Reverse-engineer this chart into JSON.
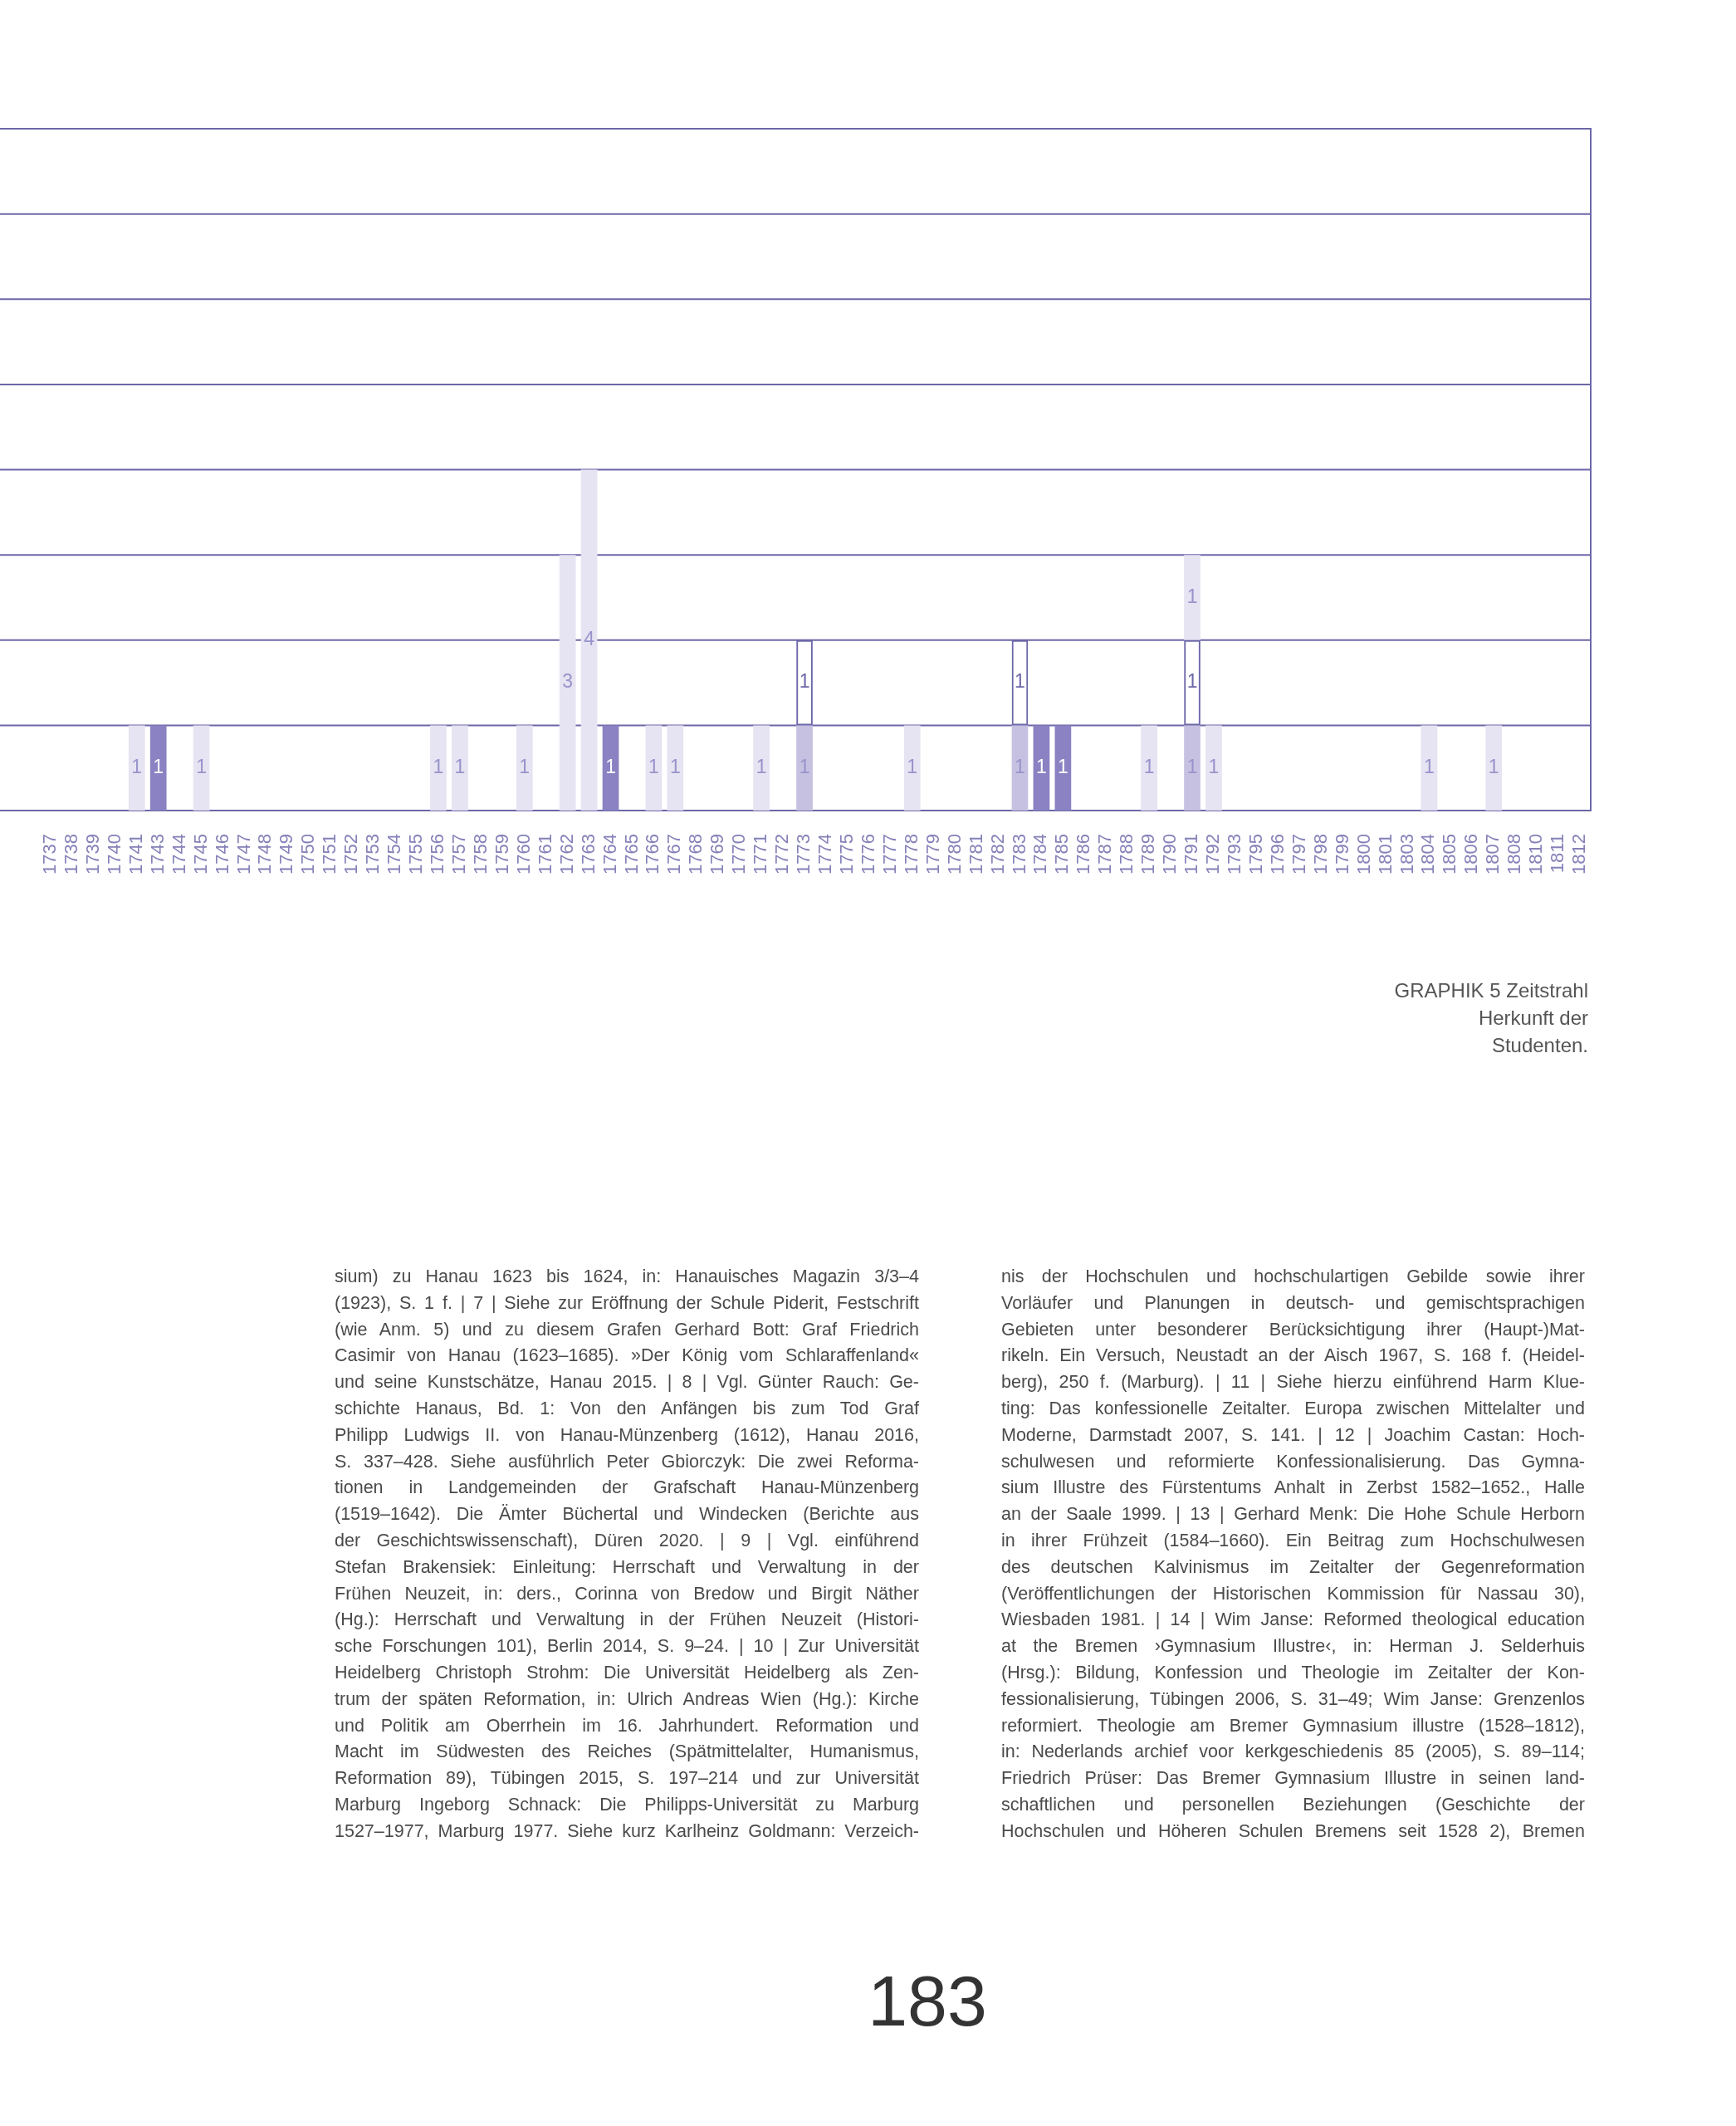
{
  "chart_data": {
    "type": "bar",
    "title": "GRAPHIK 5 Zeitstrahl Herkunft der Studenten.",
    "categories": [
      "1737",
      "1738",
      "1739",
      "1740",
      "1741",
      "1743",
      "1744",
      "1745",
      "1746",
      "1747",
      "1748",
      "1749",
      "1750",
      "1751",
      "1752",
      "1753",
      "1754",
      "1755",
      "1756",
      "1757",
      "1758",
      "1759",
      "1760",
      "1761",
      "1762",
      "1763",
      "1764",
      "1765",
      "1766",
      "1767",
      "1768",
      "1769",
      "1770",
      "1771",
      "1772",
      "1773",
      "1774",
      "1775",
      "1776",
      "1777",
      "1778",
      "1779",
      "1780",
      "1781",
      "1782",
      "1783",
      "1784",
      "1785",
      "1786",
      "1787",
      "1788",
      "1789",
      "1790",
      "1791",
      "1792",
      "1793",
      "1795",
      "1796",
      "1797",
      "1798",
      "1799",
      "1800",
      "1801",
      "1803",
      "1804",
      "1805",
      "1806",
      "1807",
      "1808",
      "1810",
      "1811",
      "1812"
    ],
    "stacked": true,
    "series": [
      {
        "color": "#8a82c2",
        "values": [
          null,
          null,
          null,
          null,
          null,
          1,
          null,
          null,
          null,
          null,
          null,
          null,
          null,
          null,
          null,
          null,
          null,
          null,
          null,
          null,
          null,
          null,
          null,
          null,
          null,
          null,
          1,
          null,
          null,
          null,
          null,
          null,
          null,
          null,
          null,
          null,
          null,
          null,
          null,
          null,
          null,
          null,
          null,
          null,
          null,
          null,
          1,
          1,
          null,
          null,
          null,
          null,
          null,
          null,
          null,
          null,
          null,
          null,
          null,
          null,
          null,
          null,
          null,
          null,
          null,
          null,
          null,
          null,
          null,
          null,
          null,
          null
        ]
      },
      {
        "color": "#c7c1e1",
        "values": [
          null,
          null,
          null,
          null,
          null,
          null,
          null,
          null,
          null,
          null,
          null,
          null,
          null,
          null,
          null,
          null,
          null,
          null,
          null,
          null,
          null,
          null,
          null,
          null,
          null,
          null,
          null,
          null,
          null,
          null,
          null,
          null,
          null,
          null,
          null,
          1,
          null,
          null,
          null,
          null,
          null,
          null,
          null,
          null,
          null,
          1,
          null,
          null,
          null,
          null,
          null,
          null,
          null,
          1,
          null,
          null,
          null,
          null,
          null,
          null,
          null,
          null,
          null,
          null,
          null,
          null,
          null,
          null,
          null,
          null,
          null,
          null
        ]
      },
      {
        "color": "#6c67a8",
        "values": [
          null,
          null,
          null,
          null,
          null,
          null,
          null,
          null,
          null,
          null,
          null,
          null,
          null,
          null,
          null,
          null,
          null,
          null,
          null,
          null,
          null,
          null,
          null,
          null,
          null,
          null,
          null,
          null,
          null,
          null,
          null,
          null,
          null,
          null,
          null,
          1,
          null,
          null,
          null,
          null,
          null,
          null,
          null,
          null,
          null,
          1,
          null,
          null,
          null,
          null,
          null,
          null,
          null,
          1,
          null,
          null,
          null,
          null,
          null,
          null,
          null,
          null,
          null,
          null,
          null,
          null,
          null,
          null,
          null,
          null,
          null,
          null
        ]
      },
      {
        "color": "#e6e3f2",
        "values": [
          null,
          null,
          null,
          null,
          1,
          null,
          null,
          1,
          null,
          null,
          null,
          null,
          null,
          null,
          null,
          null,
          null,
          null,
          1,
          1,
          null,
          null,
          1,
          null,
          3,
          4,
          null,
          null,
          1,
          1,
          null,
          null,
          null,
          1,
          null,
          null,
          null,
          null,
          null,
          null,
          1,
          null,
          null,
          null,
          null,
          null,
          null,
          null,
          null,
          null,
          null,
          1,
          null,
          1,
          1,
          null,
          null,
          null,
          null,
          null,
          null,
          null,
          null,
          null,
          1,
          null,
          null,
          1,
          null,
          null,
          null,
          null
        ]
      }
    ],
    "ylim": [
      0,
      8
    ],
    "yticks": [
      {
        "value": 0,
        "label": null
      },
      {
        "value": 1,
        "label": null
      },
      {
        "value": 2,
        "label": null
      },
      {
        "value": 3,
        "label": null
      },
      {
        "value": 4,
        "label": null
      },
      {
        "value": 5,
        "label": null
      },
      {
        "value": 6,
        "label": null
      },
      {
        "value": 7,
        "label": null
      },
      {
        "value": 8,
        "label": null
      }
    ],
    "grid": "y",
    "tick_labels": "x",
    "data_labels": true,
    "legend": false,
    "annotations": [
      "sium) zu Hanau 1623 bis 1624, in: Hanauisches Magazin 3/3–4\n(1923), S. 1 f. | 7 | Siehe zur Eröffnung der Schule Piderit, Festschrift\n(wie Anm. 5) und zu diesem Grafen Gerhard Bott: Graf Friedrich\nCasimir von Hanau (1623–1685). »Der König vom Schlaraffenland«\nund seine Kunstschätze, Hanau 2015. | 8 | Vgl. Günter Rauch: Ge-\nschichte Hanaus, Bd. 1: Von den Anfängen bis zum Tod Graf\nPhilipp Ludwigs II. von Hanau-Münzenberg (1612), Hanau 2016,\nS. 337–428. Siehe ausführlich Peter Gbiorczyk: Die zwei Reforma-\ntionen in Landgemeinden der Grafschaft Hanau-Münzenberg\n(1519–1642). Die Ämter Büchertal und Windecken (Berichte aus\nder Geschichtswissenschaft), Düren 2020. | 9 | Vgl. einführend\nStefan Brakensiek: Einleitung: Herrschaft und Verwaltung in der\nFrühen Neuzeit, in: ders., Corinna von Bredow und Birgit Näther\n(Hg.): Herrschaft und Verwaltung in der Frühen Neuzeit (Histori-\nsche Forschungen 101), Berlin 2014, S. 9–24. | 10 | Zur Universität\nHeidelberg Christoph Strohm: Die Universität Heidelberg als Zen-\ntrum der späten Reformation, in: Ulrich Andreas Wien (Hg.): Kirche\nund Politik am Oberrhein im 16. Jahrhundert. Reformation und\nMacht im Südwesten des Reiches (Spätmittelalter, Humanismus,\nReformation 89), Tübingen 2015, S. 197–214 und zur Universität\nMarburg Ingeborg Schnack: Die Philipps-Universität zu Marburg\n1527–1977, Marburg 1977. Siehe kurz Karlheinz Goldmann: Verzeich-",
      "nis der Hochschulen und hochschulartigen Gebilde sowie ihrer\nVorläufer und Planungen in deutsch- und gemischtsprachigen\nGebieten unter besonderer Berücksichtigung ihrer (Haupt-)Mat-\nrikeln. Ein Versuch, Neustadt an der Aisch 1967, S. 168 f. (Heidel-\nberg), 250 f. (Marburg). | 11 | Siehe hierzu einführend Harm Klue-\nting: Das konfessionelle Zeitalter. Europa zwischen Mittelalter und\nModerne, Darmstadt 2007, S. 141. | 12 | Joachim Castan: Hoch-\nschulwesen und reformierte Konfessionalisierung. Das Gymna-\nsium Illustre des Fürstentums Anhalt in Zerbst 1582–1652., Halle\nan der Saale 1999. | 13 | Gerhard Menk: Die Hohe Schule Herborn\nin ihrer Frühzeit (1584–1660). Ein Beitrag zum Hochschulwesen\ndes deutschen Kalvinismus im Zeitalter der Gegenreformation\n(Veröffentlichungen der Historischen Kommission für Nassau 30),\nWiesbaden 1981. | 14 | Wim Janse: Reformed theological education\nat the Bremen ›Gymnasium Illustre‹, in: Herman J. Selderhuis\n(Hrsg.): Bildung, Konfession und Theologie im Zeitalter der Kon-\nfessionalisierung, Tübingen 2006, S. 31–49; Wim Janse: Grenzenlos\nreformiert. Theologie am Bremer Gymnasium illustre (1528–1812),\nin: Nederlands archief voor kerkgeschiedenis 85 (2005), S. 89–114;\nFriedrich Prüser: Das Bremer Gymnasium Illustre in seinen land-\nschaftlichen und personellen Beziehungen (Geschichte der\nHochschulen und Höheren Schulen Bremens seit 1528 2), Bremen",
      "183"
    ]
  }
}
